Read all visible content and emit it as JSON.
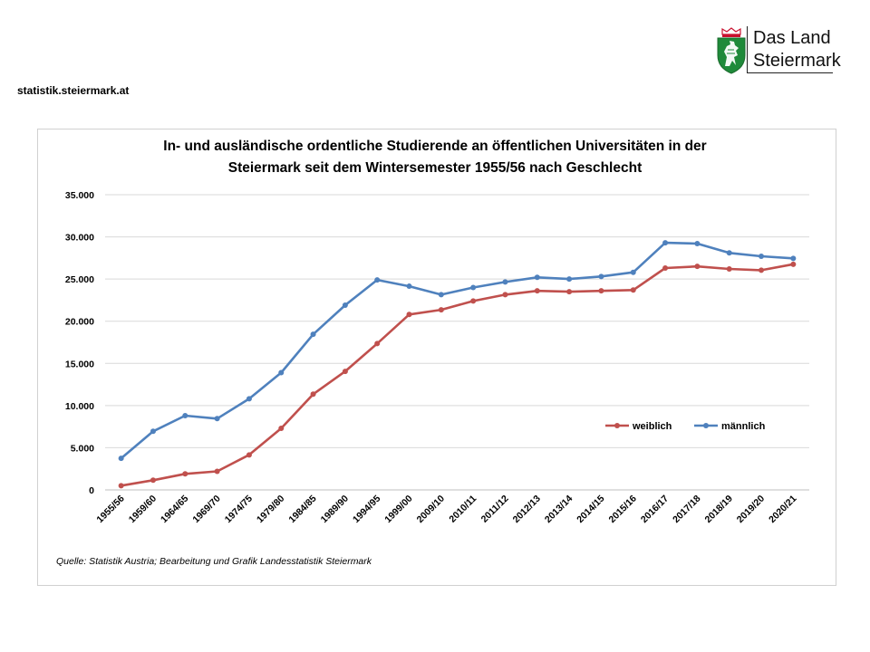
{
  "header": {
    "site_url": "statistik.steiermark.at",
    "logo": {
      "line1": "Das Land",
      "line2": "Steiermark"
    }
  },
  "source_note": "Quelle: Statistik Austria; Bearbeitung und Grafik Landesstatistik Steiermark",
  "colors": {
    "weiblich": "#C0504D",
    "maennlich": "#4F81BD",
    "grid": "#d9d9d9"
  },
  "chart_data": {
    "type": "line",
    "title_lines": [
      "In- und ausländische ordentliche Studierende an öffentlichen Universitäten in der",
      "Steiermark seit dem Wintersemester 1955/56 nach Geschlecht"
    ],
    "xlabel": "",
    "ylabel": "",
    "ylim": [
      0,
      35000
    ],
    "yticks": [
      "0",
      "5.000",
      "10.000",
      "15.000",
      "20.000",
      "25.000",
      "30.000",
      "35.000"
    ],
    "ytick_values": [
      0,
      5000,
      10000,
      15000,
      20000,
      25000,
      30000,
      35000
    ],
    "grid": true,
    "legend_position": "right",
    "categories": [
      "1955/56",
      "1959/60",
      "1964/65",
      "1969/70",
      "1974/75",
      "1979/80",
      "1984/85",
      "1989/90",
      "1994/95",
      "1999/00",
      "2009/10",
      "2010/11",
      "2011/12",
      "2012/13",
      "2013/14",
      "2014/15",
      "2015/16",
      "2016/17",
      "2017/18",
      "2018/19",
      "2019/20",
      "2020/21"
    ],
    "series": [
      {
        "name": "weiblich",
        "color": "#C0504D",
        "values": [
          500,
          1150,
          1900,
          2200,
          4150,
          7300,
          11350,
          14050,
          17350,
          20800,
          21350,
          22400,
          23150,
          23600,
          23500,
          23600,
          23700,
          26300,
          26500,
          26200,
          26050,
          26750
        ]
      },
      {
        "name": "männlich",
        "color": "#4F81BD",
        "values": [
          3750,
          6950,
          8800,
          8450,
          10800,
          13900,
          18450,
          21900,
          24900,
          24150,
          23150,
          24000,
          24650,
          25200,
          25000,
          25300,
          25800,
          29300,
          29200,
          28100,
          27700,
          27450
        ]
      }
    ]
  }
}
